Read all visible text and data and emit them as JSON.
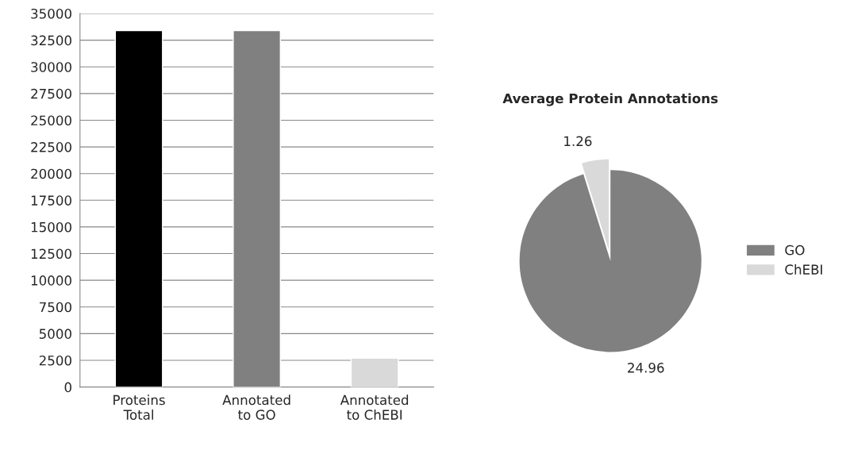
{
  "chart_data": [
    {
      "type": "bar",
      "categories": [
        "Proteins Total",
        "Annotated to GO",
        "Annotated to ChEBI"
      ],
      "values": [
        33400,
        33400,
        2700
      ],
      "colors": [
        "#000000",
        "#808080",
        "#d9d9d9"
      ],
      "ylim": [
        0,
        35000
      ],
      "yticks": [
        0,
        2500,
        5000,
        7500,
        10000,
        12500,
        15000,
        17500,
        20000,
        22500,
        25000,
        27500,
        30000,
        32500,
        35000
      ],
      "grid": "y"
    },
    {
      "type": "pie",
      "title": "Average Protein Annotations",
      "categories": [
        "GO",
        "ChEBI"
      ],
      "values": [
        24.96,
        1.26
      ],
      "colors": [
        "#808080",
        "#d9d9d9"
      ],
      "data_labels": true,
      "legend": "right"
    }
  ]
}
